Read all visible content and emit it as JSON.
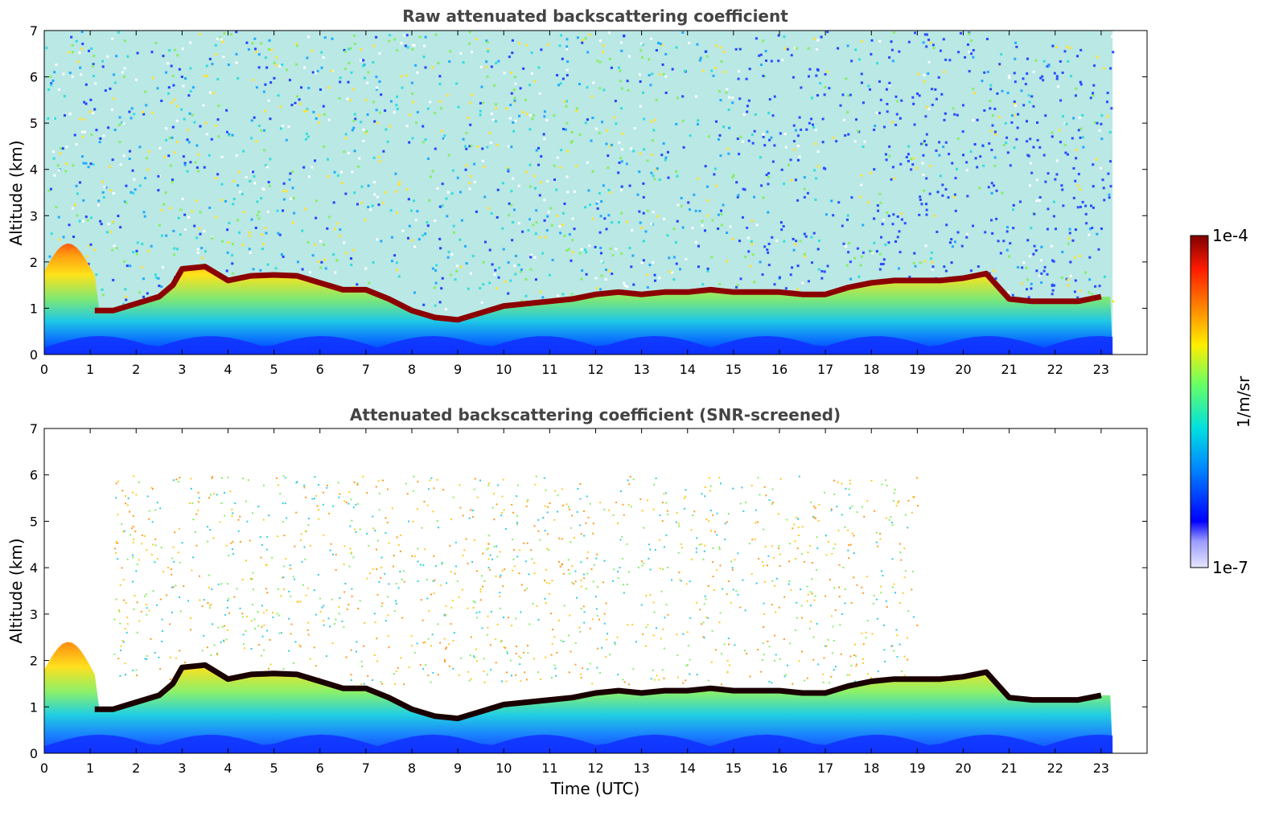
{
  "chart_data": [
    {
      "type": "heatmap",
      "title": "Raw attenuated backscattering coefficient",
      "xlabel": "",
      "ylabel": "Altitude (km)",
      "xlim": [
        0,
        24
      ],
      "ylim": [
        0,
        7
      ],
      "x_data_end": 23.25,
      "xticks": [
        0,
        1,
        2,
        3,
        4,
        5,
        6,
        7,
        8,
        9,
        10,
        11,
        12,
        13,
        14,
        15,
        16,
        17,
        18,
        19,
        20,
        21,
        22,
        23
      ],
      "yticks": [
        0,
        1,
        2,
        3,
        4,
        5,
        6,
        7
      ],
      "screened": false,
      "grid": false
    },
    {
      "type": "heatmap",
      "title": "Attenuated backscattering coefficient (SNR-screened)",
      "xlabel": "Time (UTC)",
      "ylabel": "Altitude (km)",
      "xlim": [
        0,
        24
      ],
      "ylim": [
        0,
        7
      ],
      "x_data_end": 23.25,
      "xticks": [
        0,
        1,
        2,
        3,
        4,
        5,
        6,
        7,
        8,
        9,
        10,
        11,
        12,
        13,
        14,
        15,
        16,
        17,
        18,
        19,
        20,
        21,
        22,
        23
      ],
      "yticks": [
        0,
        1,
        2,
        3,
        4,
        5,
        6,
        7
      ],
      "screened": true,
      "grid": false
    }
  ],
  "colorbar": {
    "label": "1/m/sr",
    "max_label": "1e-4",
    "min_label": "1e-7",
    "scale": "log",
    "colormap": "jet",
    "colors": [
      "#e6e6ff",
      "#0000ff",
      "#00aaff",
      "#00e5e5",
      "#66ff66",
      "#ffee00",
      "#ff8800",
      "#ff2200",
      "#7f0000"
    ]
  },
  "layers": {
    "boundary_layer_top_km": [
      [
        1.1,
        0.95
      ],
      [
        1.5,
        0.95
      ],
      [
        2.0,
        1.1
      ],
      [
        2.5,
        1.25
      ],
      [
        2.8,
        1.5
      ],
      [
        3.0,
        1.85
      ],
      [
        3.5,
        1.9
      ],
      [
        4.0,
        1.6
      ],
      [
        4.5,
        1.7
      ],
      [
        5.0,
        1.72
      ],
      [
        5.5,
        1.7
      ],
      [
        6.0,
        1.55
      ],
      [
        6.5,
        1.4
      ],
      [
        7.0,
        1.4
      ],
      [
        7.5,
        1.2
      ],
      [
        8.0,
        0.95
      ],
      [
        8.5,
        0.8
      ],
      [
        9.0,
        0.75
      ],
      [
        9.5,
        0.9
      ],
      [
        10.0,
        1.05
      ],
      [
        10.5,
        1.1
      ],
      [
        11.0,
        1.15
      ],
      [
        11.5,
        1.2
      ],
      [
        12.0,
        1.3
      ],
      [
        12.5,
        1.35
      ],
      [
        13.0,
        1.3
      ],
      [
        13.5,
        1.35
      ],
      [
        14.0,
        1.35
      ],
      [
        14.5,
        1.4
      ],
      [
        15.0,
        1.35
      ],
      [
        15.5,
        1.35
      ],
      [
        16.0,
        1.35
      ],
      [
        16.5,
        1.3
      ],
      [
        17.0,
        1.3
      ],
      [
        17.5,
        1.45
      ],
      [
        18.0,
        1.55
      ],
      [
        18.5,
        1.6
      ],
      [
        19.0,
        1.6
      ],
      [
        19.5,
        1.6
      ],
      [
        20.0,
        1.65
      ],
      [
        20.5,
        1.75
      ],
      [
        21.0,
        1.2
      ],
      [
        21.5,
        1.15
      ],
      [
        22.0,
        1.15
      ],
      [
        22.5,
        1.15
      ],
      [
        23.0,
        1.25
      ]
    ]
  }
}
